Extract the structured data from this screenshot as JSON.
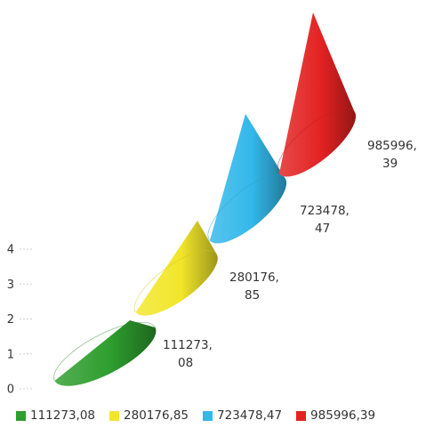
{
  "chart_data": {
    "type": "bar",
    "variant": "3d-cone-stacked",
    "title": "",
    "xlabel": "",
    "ylabel": "",
    "ylim": [
      0,
      4
    ],
    "yticks": [
      "0",
      "1",
      "2",
      "3",
      "4"
    ],
    "grid": false,
    "legend_position": "bottom",
    "series": [
      {
        "name": "111273,08",
        "value": 111273.08,
        "label_line1": "111273,",
        "label_line2": "08",
        "color": "#2e9e2e"
      },
      {
        "name": "280176,85",
        "value": 280176.85,
        "label_line1": "280176,",
        "label_line2": "85",
        "color": "#f2e62a"
      },
      {
        "name": "723478,47",
        "value": 723478.47,
        "label_line1": "723478,",
        "label_line2": "47",
        "color": "#33b8ea"
      },
      {
        "name": "985996,39",
        "value": 985996.39,
        "label_line1": "985996,",
        "label_line2": "39",
        "color": "#e32222"
      }
    ]
  }
}
